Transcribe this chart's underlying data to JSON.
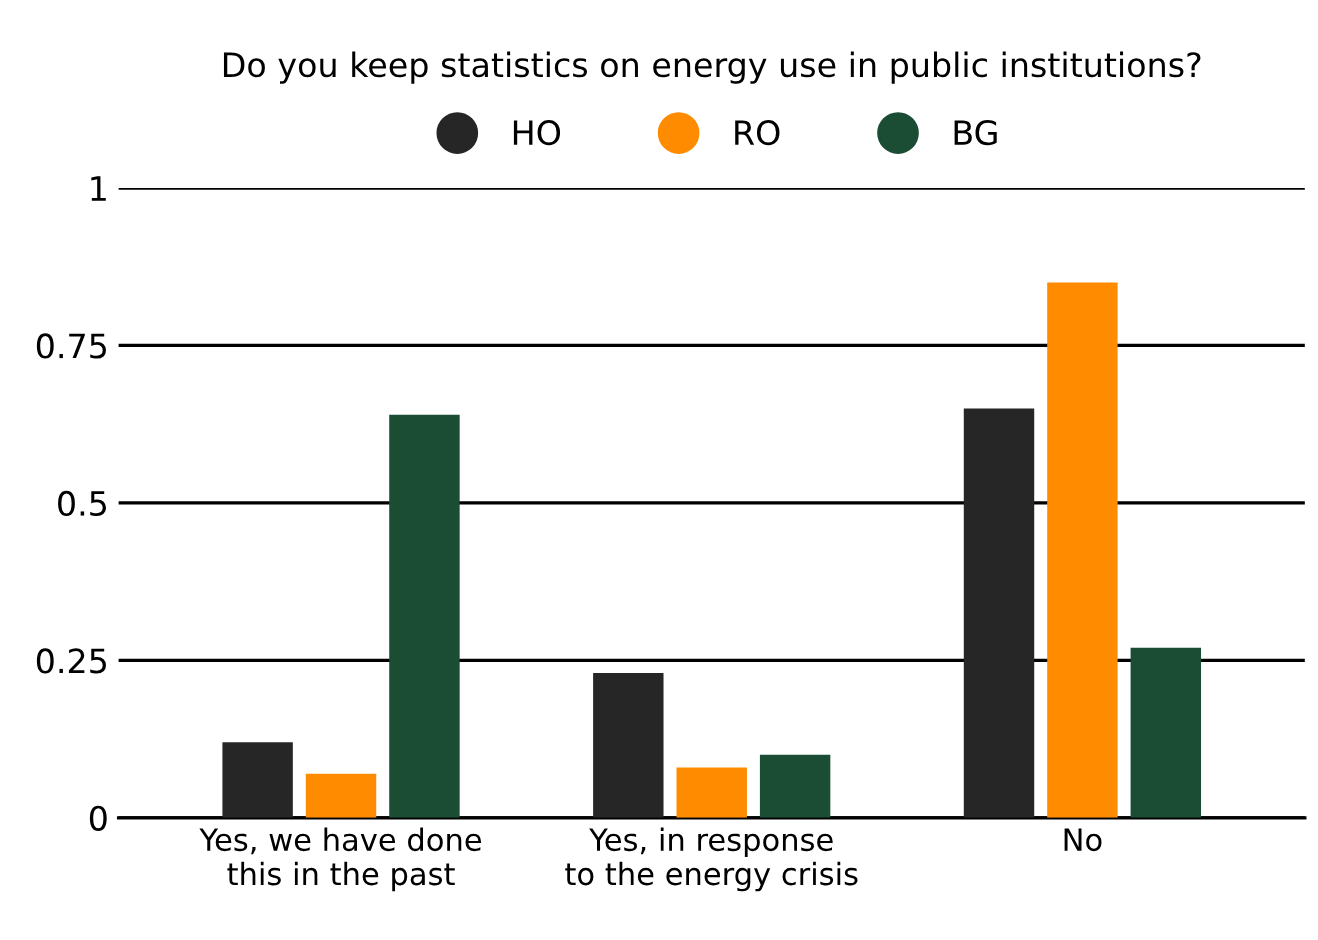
{
  "chart_data": {
    "type": "bar",
    "title": "Do you keep statistics on energy use in public institutions?",
    "categories": [
      "Yes, we have done\nthis in the past",
      "Yes, in response\nto the energy crisis",
      "No"
    ],
    "series": [
      {
        "name": "HO",
        "color": "#262626",
        "values": [
          0.12,
          0.23,
          0.65
        ]
      },
      {
        "name": "RO",
        "color": "#ff8c00",
        "values": [
          0.07,
          0.08,
          0.85
        ]
      },
      {
        "name": "BG",
        "color": "#1b4d35",
        "values": [
          0.64,
          0.1,
          0.27
        ]
      }
    ],
    "ylim": [
      0,
      1
    ],
    "yticks": [
      0,
      0.25,
      0.5,
      0.75,
      1
    ],
    "grid": "y",
    "legend": "top"
  }
}
